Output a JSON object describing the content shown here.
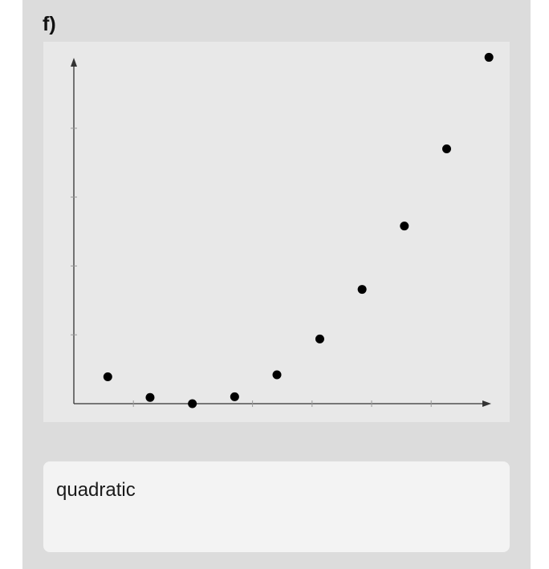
{
  "question": {
    "part_label": "f)"
  },
  "answer": {
    "value": "quadratic"
  },
  "colors": {
    "background": "#dcdcdc",
    "plot_bg": "#e8e8e8",
    "axis": "#333333",
    "point": "#000000"
  },
  "chart_data": {
    "type": "scatter",
    "title": "",
    "xlabel": "",
    "ylabel": "",
    "grid": false,
    "xlim": [
      0,
      7
    ],
    "ylim": [
      0,
      5
    ],
    "x_ticks": [
      1,
      2,
      3,
      4,
      5,
      6
    ],
    "y_ticks": [
      1,
      2,
      3,
      4
    ],
    "series": [
      {
        "x": [
          0.57,
          1.28,
          1.99,
          2.7,
          3.41,
          4.13,
          4.84,
          5.55,
          6.26,
          6.97
        ],
        "y": [
          0.39,
          0.09,
          0.0,
          0.1,
          0.42,
          0.94,
          1.66,
          2.58,
          3.7,
          5.03
        ]
      }
    ]
  }
}
